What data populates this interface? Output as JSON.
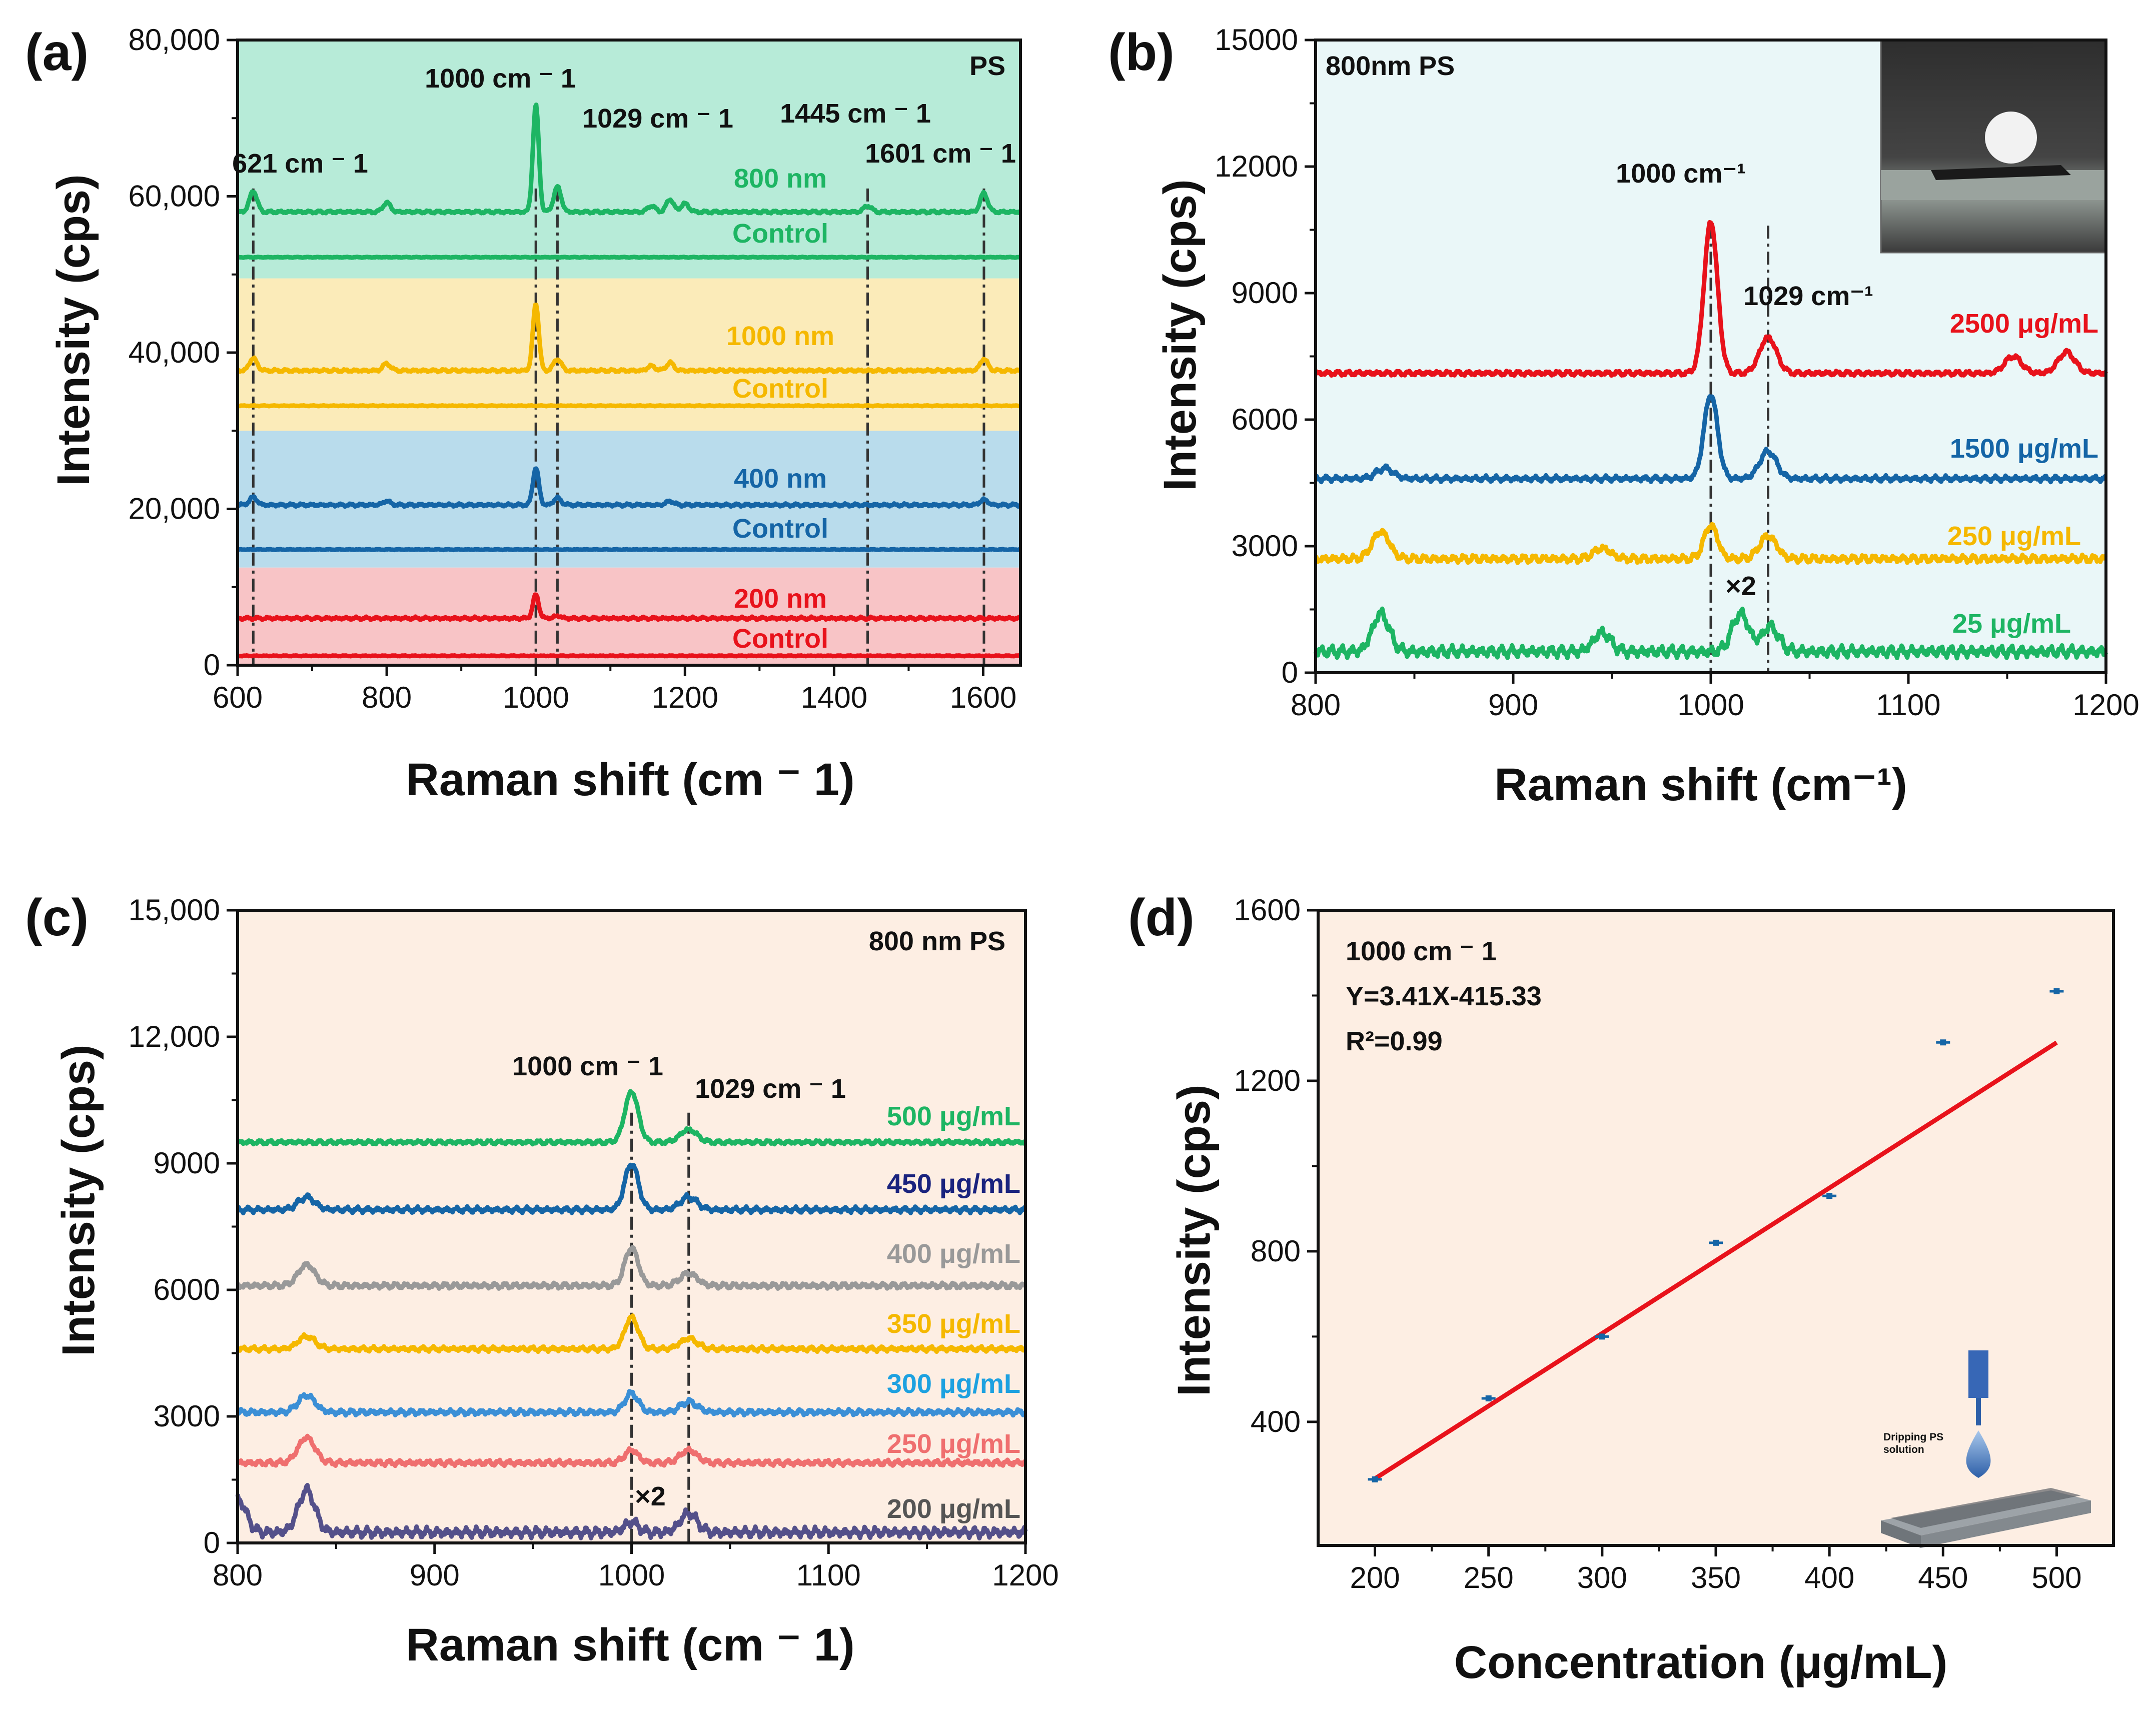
{
  "colors": {
    "green": "#1db563",
    "orange": "#f5b800",
    "blue": "#1565a6",
    "red": "#e8121b",
    "bg_green": "#b7ebd8",
    "bg_yellow": "#fbebb9",
    "bg_blue": "#b9dcec",
    "bg_pink": "#f8c4c6",
    "bg_cyan": "#eaf7f8",
    "bg_peach": "#fdeee3"
  },
  "chart_data": [
    {
      "panel": "(a)",
      "type": "line",
      "title": "",
      "xlabel": "Raman shift (cm ⁻ 1)",
      "ylabel": "Intensity (cps)",
      "xlim": [
        600,
        1650
      ],
      "ylim": [
        0,
        80000
      ],
      "xticks": [
        600,
        800,
        1000,
        1200,
        1400,
        1600
      ],
      "yticks": [
        0,
        20000,
        40000,
        60000,
        80000
      ],
      "xtick_labels": [
        "600",
        "800",
        "1000",
        "1200",
        "1400",
        "1600"
      ],
      "ytick_labels": [
        "0",
        "20,000",
        "40,000",
        "60,000",
        "80,000"
      ],
      "corner_label": "PS",
      "bands": [
        {
          "from": 0,
          "to": 12500,
          "color": "#f8c4c6"
        },
        {
          "from": 12500,
          "to": 30000,
          "color": "#b9dcec"
        },
        {
          "from": 30000,
          "to": 49500,
          "color": "#fbebb9"
        },
        {
          "from": 49500,
          "to": 80000,
          "color": "#b7ebd8"
        }
      ],
      "peak_lines": [
        621,
        1000,
        1029,
        1445,
        1601
      ],
      "annotations": [
        "621 cm ⁻ 1",
        "1000 cm ⁻ 1",
        "1029 cm ⁻ 1",
        "1445 cm ⁻ 1",
        "1601 cm ⁻ 1"
      ],
      "series": [
        {
          "name": "800 nm",
          "color": "#1db563",
          "baseline": 58000,
          "peaks": {
            "621": 2700,
            "800": 1200,
            "1000": 13700,
            "1029": 3200,
            "1155": 800,
            "1180": 1600,
            "1200": 1100,
            "1445": 800,
            "1601": 2400
          }
        },
        {
          "name": "Control",
          "color": "#1db563",
          "baseline": 52200,
          "peaks": {}
        },
        {
          "name": "1000 nm",
          "color": "#f5b800",
          "baseline": 37700,
          "peaks": {
            "621": 1600,
            "800": 900,
            "1000": 8600,
            "1029": 1500,
            "1155": 600,
            "1180": 1000,
            "1601": 1500
          }
        },
        {
          "name": "Control",
          "color": "#f5b800",
          "baseline": 33200,
          "peaks": {}
        },
        {
          "name": "400 nm",
          "color": "#1565a6",
          "baseline": 20500,
          "peaks": {
            "621": 1000,
            "800": 500,
            "1000": 4800,
            "1029": 900,
            "1180": 500,
            "1601": 700
          }
        },
        {
          "name": "Control",
          "color": "#1565a6",
          "baseline": 14800,
          "peaks": {}
        },
        {
          "name": "200 nm",
          "color": "#e8121b",
          "baseline": 6000,
          "peaks": {
            "1000": 3000,
            "1029": 300
          }
        },
        {
          "name": "Control",
          "color": "#e8121b",
          "baseline": 1200,
          "peaks": {}
        }
      ]
    },
    {
      "panel": "(b)",
      "type": "line",
      "title": "",
      "xlabel": "Raman shift (cm⁻¹)",
      "ylabel": "Intensity (cps)",
      "xlim": [
        800,
        1200
      ],
      "ylim": [
        0,
        15000
      ],
      "xticks": [
        800,
        900,
        1000,
        1100,
        1200
      ],
      "yticks": [
        0,
        3000,
        6000,
        9000,
        12000,
        15000
      ],
      "xtick_labels": [
        "800",
        "900",
        "1000",
        "1100",
        "1200"
      ],
      "ytick_labels": [
        "0",
        "3000",
        "6000",
        "9000",
        "12000",
        "15000"
      ],
      "corner_label": "800nm PS",
      "peak_lines": [
        1000,
        1029
      ],
      "annotations": [
        "1000 cm⁻¹",
        "1029 cm⁻¹",
        "×2"
      ],
      "series": [
        {
          "name": "2500 μg/mL",
          "color": "#e8121b",
          "baseline": 7100,
          "peaks": {
            "1000": 3600,
            "1029": 850,
            "1153": 400,
            "1180": 500
          }
        },
        {
          "name": "1500 μg/mL",
          "color": "#1565a6",
          "baseline": 4600,
          "peaks": {
            "835": 250,
            "1000": 2000,
            "1029": 650
          }
        },
        {
          "name": "250 μg/mL",
          "color": "#f5b800",
          "baseline": 2700,
          "peaks": {
            "833": 650,
            "945": 250,
            "1000": 800,
            "1029": 550
          }
        },
        {
          "name": "25 μg/mL",
          "color": "#1db563",
          "baseline": 500,
          "peaks": {
            "833": 900,
            "945": 450,
            "1015": 900,
            "1030": 600
          }
        }
      ]
    },
    {
      "panel": "(c)",
      "type": "line",
      "title": "",
      "xlabel": "Raman shift (cm ⁻ 1)",
      "ylabel": "Intensity (cps)",
      "xlim": [
        800,
        1200
      ],
      "ylim": [
        0,
        15000
      ],
      "xticks": [
        800,
        900,
        1000,
        1100,
        1200
      ],
      "yticks": [
        0,
        3000,
        6000,
        9000,
        12000,
        15000
      ],
      "xtick_labels": [
        "800",
        "900",
        "1000",
        "1100",
        "1200"
      ],
      "ytick_labels": [
        "0",
        "3000",
        "6000",
        "9000",
        "12,000",
        "15,000"
      ],
      "corner_label": "800 nm PS",
      "peak_lines": [
        1000,
        1029
      ],
      "annotations": [
        "1000 cm ⁻ 1",
        "1029 cm ⁻ 1",
        "×2"
      ],
      "series": [
        {
          "name": "500 μg/mL",
          "color": "#1db563",
          "baseline": 9500,
          "peaks": {
            "1000": 1200,
            "1029": 300
          }
        },
        {
          "name": "450 μg/mL",
          "color": "#1565a6",
          "baseline": 7900,
          "peaks": {
            "835": 300,
            "1000": 1100,
            "1029": 300
          }
        },
        {
          "name": "400 μg/mL",
          "color": "#999999",
          "baseline": 6100,
          "peaks": {
            "835": 500,
            "1000": 900,
            "1029": 300
          }
        },
        {
          "name": "350 μg/mL",
          "color": "#f5b800",
          "baseline": 4600,
          "peaks": {
            "835": 300,
            "1000": 750,
            "1029": 250
          }
        },
        {
          "name": "300 μg/mL",
          "color": "#3b8fd6",
          "baseline": 3100,
          "peaks": {
            "835": 400,
            "1000": 450,
            "1029": 250
          }
        },
        {
          "name": "250 μg/mL",
          "color": "#ef6f6f",
          "baseline": 1900,
          "peaks": {
            "835": 600,
            "1000": 300,
            "1029": 300
          }
        },
        {
          "name": "200 μg/mL",
          "color": "#54508a",
          "baseline": 250,
          "peaks": {
            "800": 800,
            "835": 1000,
            "1000": 250,
            "1029": 450
          }
        }
      ]
    },
    {
      "panel": "(d)",
      "type": "scatter",
      "title": "",
      "xlabel": "Concentration (μg/mL)",
      "ylabel": "Intensity (cps)",
      "xlim": [
        175,
        525
      ],
      "ylim": [
        110,
        1600
      ],
      "xticks": [
        200,
        250,
        300,
        350,
        400,
        450,
        500
      ],
      "yticks": [
        400,
        800,
        1200,
        1600
      ],
      "xtick_labels": [
        "200",
        "250",
        "300",
        "350",
        "400",
        "450",
        "500"
      ],
      "ytick_labels": [
        "400",
        "800",
        "1200",
        "1600"
      ],
      "x": [
        200,
        250,
        300,
        350,
        400,
        450,
        500
      ],
      "y": [
        265,
        455,
        600,
        820,
        930,
        1290,
        1410
      ],
      "fit": {
        "slope": 3.41,
        "intercept": -415.33,
        "color": "#e8121b",
        "x_range": [
          200,
          500
        ]
      },
      "annotations": [
        "1000 cm ⁻ 1",
        "Y=3.41X-415.33",
        "R²=0.99"
      ],
      "inset_text": [
        "Dripping PS",
        "solution"
      ]
    }
  ]
}
